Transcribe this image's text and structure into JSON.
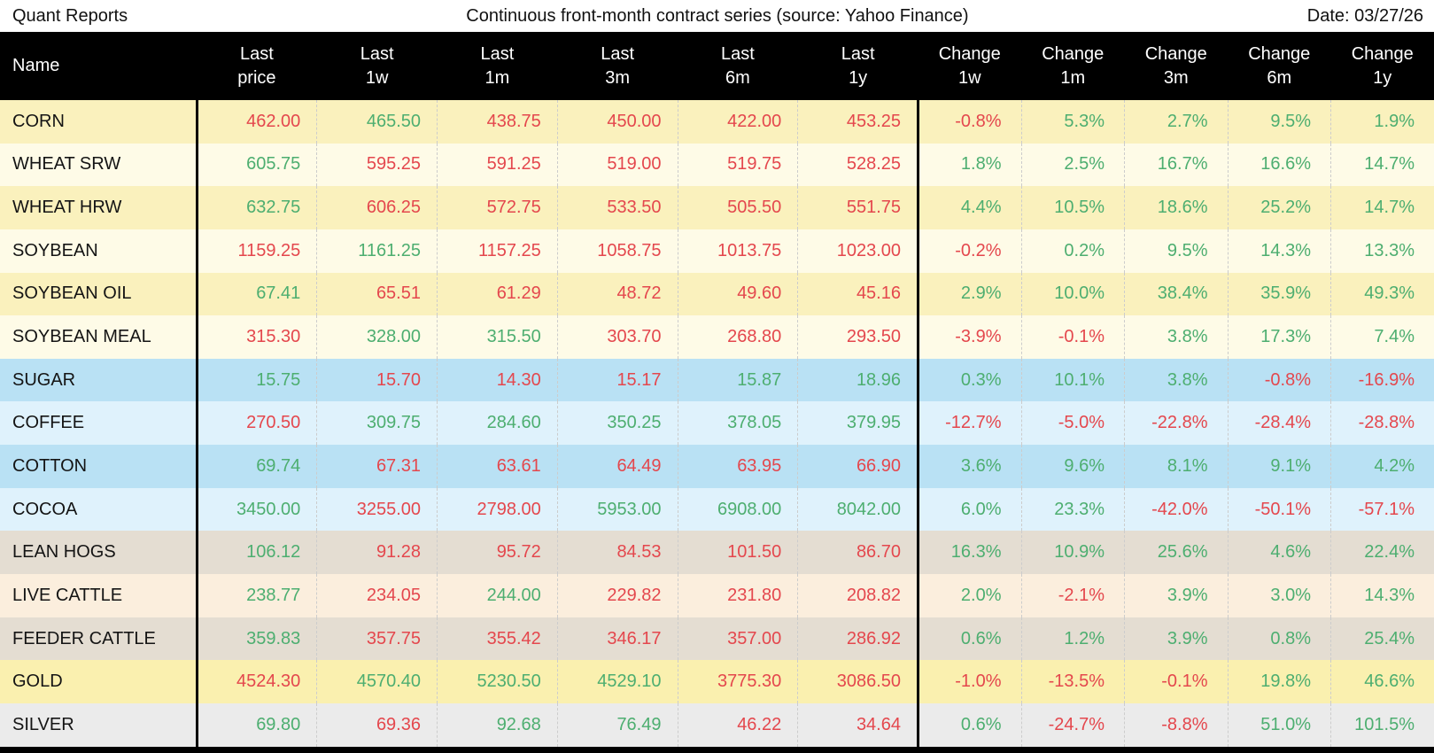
{
  "topbar": {
    "report_name": "Quant Reports",
    "title": "Continuous front-month contract series (source: Yahoo Finance)",
    "date": "Date: 03/27/26"
  },
  "colors": {
    "up": "#4DAE70",
    "down": "#E4474D",
    "header_bg": "#000000",
    "header_text": "#FFFFFF",
    "dashed_line": "#CCCCCC",
    "grain_dark": "#FAF1BD",
    "grain_light": "#FEFBE7",
    "soft_dark": "#B9E1F4",
    "soft_light": "#DFF2FC",
    "meat_dark": "#E4DDD2",
    "meat_light": "#FBEEDD",
    "gold": "#FAF0AF",
    "silver": "#EBEBEB"
  },
  "chart_data": {
    "type": "table",
    "title": "Continuous front-month contract series (source: Yahoo Finance)",
    "date": "03/27/26",
    "columns": [
      {
        "line1": "Name",
        "line2": ""
      },
      {
        "line1": "Last",
        "line2": "price"
      },
      {
        "line1": "Last",
        "line2": "1w"
      },
      {
        "line1": "Last",
        "line2": "1m"
      },
      {
        "line1": "Last",
        "line2": "3m"
      },
      {
        "line1": "Last",
        "line2": "6m"
      },
      {
        "line1": "Last",
        "line2": "1y"
      },
      {
        "line1": "Change",
        "line2": "1w"
      },
      {
        "line1": "Change",
        "line2": "1m"
      },
      {
        "line1": "Change",
        "line2": "3m"
      },
      {
        "line1": "Change",
        "line2": "6m"
      },
      {
        "line1": "Change",
        "line2": "1y"
      }
    ],
    "rows": [
      {
        "name": "CORN",
        "bg": "grain_dark",
        "cells": [
          {
            "v": "462.00",
            "t": "down"
          },
          {
            "v": "465.50",
            "t": "up"
          },
          {
            "v": "438.75",
            "t": "down"
          },
          {
            "v": "450.00",
            "t": "down"
          },
          {
            "v": "422.00",
            "t": "down"
          },
          {
            "v": "453.25",
            "t": "down"
          },
          {
            "v": "-0.8%",
            "t": "down"
          },
          {
            "v": "5.3%",
            "t": "up"
          },
          {
            "v": "2.7%",
            "t": "up"
          },
          {
            "v": "9.5%",
            "t": "up"
          },
          {
            "v": "1.9%",
            "t": "up"
          }
        ]
      },
      {
        "name": "WHEAT SRW",
        "bg": "grain_light",
        "cells": [
          {
            "v": "605.75",
            "t": "up"
          },
          {
            "v": "595.25",
            "t": "down"
          },
          {
            "v": "591.25",
            "t": "down"
          },
          {
            "v": "519.00",
            "t": "down"
          },
          {
            "v": "519.75",
            "t": "down"
          },
          {
            "v": "528.25",
            "t": "down"
          },
          {
            "v": "1.8%",
            "t": "up"
          },
          {
            "v": "2.5%",
            "t": "up"
          },
          {
            "v": "16.7%",
            "t": "up"
          },
          {
            "v": "16.6%",
            "t": "up"
          },
          {
            "v": "14.7%",
            "t": "up"
          }
        ]
      },
      {
        "name": "WHEAT HRW",
        "bg": "grain_dark",
        "cells": [
          {
            "v": "632.75",
            "t": "up"
          },
          {
            "v": "606.25",
            "t": "down"
          },
          {
            "v": "572.75",
            "t": "down"
          },
          {
            "v": "533.50",
            "t": "down"
          },
          {
            "v": "505.50",
            "t": "down"
          },
          {
            "v": "551.75",
            "t": "down"
          },
          {
            "v": "4.4%",
            "t": "up"
          },
          {
            "v": "10.5%",
            "t": "up"
          },
          {
            "v": "18.6%",
            "t": "up"
          },
          {
            "v": "25.2%",
            "t": "up"
          },
          {
            "v": "14.7%",
            "t": "up"
          }
        ]
      },
      {
        "name": "SOYBEAN",
        "bg": "grain_light",
        "cells": [
          {
            "v": "1159.25",
            "t": "down"
          },
          {
            "v": "1161.25",
            "t": "up"
          },
          {
            "v": "1157.25",
            "t": "down"
          },
          {
            "v": "1058.75",
            "t": "down"
          },
          {
            "v": "1013.75",
            "t": "down"
          },
          {
            "v": "1023.00",
            "t": "down"
          },
          {
            "v": "-0.2%",
            "t": "down"
          },
          {
            "v": "0.2%",
            "t": "up"
          },
          {
            "v": "9.5%",
            "t": "up"
          },
          {
            "v": "14.3%",
            "t": "up"
          },
          {
            "v": "13.3%",
            "t": "up"
          }
        ]
      },
      {
        "name": "SOYBEAN OIL",
        "bg": "grain_dark",
        "cells": [
          {
            "v": "67.41",
            "t": "up"
          },
          {
            "v": "65.51",
            "t": "down"
          },
          {
            "v": "61.29",
            "t": "down"
          },
          {
            "v": "48.72",
            "t": "down"
          },
          {
            "v": "49.60",
            "t": "down"
          },
          {
            "v": "45.16",
            "t": "down"
          },
          {
            "v": "2.9%",
            "t": "up"
          },
          {
            "v": "10.0%",
            "t": "up"
          },
          {
            "v": "38.4%",
            "t": "up"
          },
          {
            "v": "35.9%",
            "t": "up"
          },
          {
            "v": "49.3%",
            "t": "up"
          }
        ]
      },
      {
        "name": "SOYBEAN MEAL",
        "bg": "grain_light",
        "cells": [
          {
            "v": "315.30",
            "t": "down"
          },
          {
            "v": "328.00",
            "t": "up"
          },
          {
            "v": "315.50",
            "t": "up"
          },
          {
            "v": "303.70",
            "t": "down"
          },
          {
            "v": "268.80",
            "t": "down"
          },
          {
            "v": "293.50",
            "t": "down"
          },
          {
            "v": "-3.9%",
            "t": "down"
          },
          {
            "v": "-0.1%",
            "t": "down"
          },
          {
            "v": "3.8%",
            "t": "up"
          },
          {
            "v": "17.3%",
            "t": "up"
          },
          {
            "v": "7.4%",
            "t": "up"
          }
        ]
      },
      {
        "name": "SUGAR",
        "bg": "soft_dark",
        "cells": [
          {
            "v": "15.75",
            "t": "up"
          },
          {
            "v": "15.70",
            "t": "down"
          },
          {
            "v": "14.30",
            "t": "down"
          },
          {
            "v": "15.17",
            "t": "down"
          },
          {
            "v": "15.87",
            "t": "up"
          },
          {
            "v": "18.96",
            "t": "up"
          },
          {
            "v": "0.3%",
            "t": "up"
          },
          {
            "v": "10.1%",
            "t": "up"
          },
          {
            "v": "3.8%",
            "t": "up"
          },
          {
            "v": "-0.8%",
            "t": "down"
          },
          {
            "v": "-16.9%",
            "t": "down"
          }
        ]
      },
      {
        "name": "COFFEE",
        "bg": "soft_light",
        "cells": [
          {
            "v": "270.50",
            "t": "down"
          },
          {
            "v": "309.75",
            "t": "up"
          },
          {
            "v": "284.60",
            "t": "up"
          },
          {
            "v": "350.25",
            "t": "up"
          },
          {
            "v": "378.05",
            "t": "up"
          },
          {
            "v": "379.95",
            "t": "up"
          },
          {
            "v": "-12.7%",
            "t": "down"
          },
          {
            "v": "-5.0%",
            "t": "down"
          },
          {
            "v": "-22.8%",
            "t": "down"
          },
          {
            "v": "-28.4%",
            "t": "down"
          },
          {
            "v": "-28.8%",
            "t": "down"
          }
        ]
      },
      {
        "name": "COTTON",
        "bg": "soft_dark",
        "cells": [
          {
            "v": "69.74",
            "t": "up"
          },
          {
            "v": "67.31",
            "t": "down"
          },
          {
            "v": "63.61",
            "t": "down"
          },
          {
            "v": "64.49",
            "t": "down"
          },
          {
            "v": "63.95",
            "t": "down"
          },
          {
            "v": "66.90",
            "t": "down"
          },
          {
            "v": "3.6%",
            "t": "up"
          },
          {
            "v": "9.6%",
            "t": "up"
          },
          {
            "v": "8.1%",
            "t": "up"
          },
          {
            "v": "9.1%",
            "t": "up"
          },
          {
            "v": "4.2%",
            "t": "up"
          }
        ]
      },
      {
        "name": "COCOA",
        "bg": "soft_light",
        "cells": [
          {
            "v": "3450.00",
            "t": "up"
          },
          {
            "v": "3255.00",
            "t": "down"
          },
          {
            "v": "2798.00",
            "t": "down"
          },
          {
            "v": "5953.00",
            "t": "up"
          },
          {
            "v": "6908.00",
            "t": "up"
          },
          {
            "v": "8042.00",
            "t": "up"
          },
          {
            "v": "6.0%",
            "t": "up"
          },
          {
            "v": "23.3%",
            "t": "up"
          },
          {
            "v": "-42.0%",
            "t": "down"
          },
          {
            "v": "-50.1%",
            "t": "down"
          },
          {
            "v": "-57.1%",
            "t": "down"
          }
        ]
      },
      {
        "name": "LEAN HOGS",
        "bg": "meat_dark",
        "cells": [
          {
            "v": "106.12",
            "t": "up"
          },
          {
            "v": "91.28",
            "t": "down"
          },
          {
            "v": "95.72",
            "t": "down"
          },
          {
            "v": "84.53",
            "t": "down"
          },
          {
            "v": "101.50",
            "t": "down"
          },
          {
            "v": "86.70",
            "t": "down"
          },
          {
            "v": "16.3%",
            "t": "up"
          },
          {
            "v": "10.9%",
            "t": "up"
          },
          {
            "v": "25.6%",
            "t": "up"
          },
          {
            "v": "4.6%",
            "t": "up"
          },
          {
            "v": "22.4%",
            "t": "up"
          }
        ]
      },
      {
        "name": "LIVE CATTLE",
        "bg": "meat_light",
        "cells": [
          {
            "v": "238.77",
            "t": "up"
          },
          {
            "v": "234.05",
            "t": "down"
          },
          {
            "v": "244.00",
            "t": "up"
          },
          {
            "v": "229.82",
            "t": "down"
          },
          {
            "v": "231.80",
            "t": "down"
          },
          {
            "v": "208.82",
            "t": "down"
          },
          {
            "v": "2.0%",
            "t": "up"
          },
          {
            "v": "-2.1%",
            "t": "down"
          },
          {
            "v": "3.9%",
            "t": "up"
          },
          {
            "v": "3.0%",
            "t": "up"
          },
          {
            "v": "14.3%",
            "t": "up"
          }
        ]
      },
      {
        "name": "FEEDER CATTLE",
        "bg": "meat_dark",
        "cells": [
          {
            "v": "359.83",
            "t": "up"
          },
          {
            "v": "357.75",
            "t": "down"
          },
          {
            "v": "355.42",
            "t": "down"
          },
          {
            "v": "346.17",
            "t": "down"
          },
          {
            "v": "357.00",
            "t": "down"
          },
          {
            "v": "286.92",
            "t": "down"
          },
          {
            "v": "0.6%",
            "t": "up"
          },
          {
            "v": "1.2%",
            "t": "up"
          },
          {
            "v": "3.9%",
            "t": "up"
          },
          {
            "v": "0.8%",
            "t": "up"
          },
          {
            "v": "25.4%",
            "t": "up"
          }
        ]
      },
      {
        "name": "GOLD",
        "bg": "gold",
        "cells": [
          {
            "v": "4524.30",
            "t": "down"
          },
          {
            "v": "4570.40",
            "t": "up"
          },
          {
            "v": "5230.50",
            "t": "up"
          },
          {
            "v": "4529.10",
            "t": "up"
          },
          {
            "v": "3775.30",
            "t": "down"
          },
          {
            "v": "3086.50",
            "t": "down"
          },
          {
            "v": "-1.0%",
            "t": "down"
          },
          {
            "v": "-13.5%",
            "t": "down"
          },
          {
            "v": "-0.1%",
            "t": "down"
          },
          {
            "v": "19.8%",
            "t": "up"
          },
          {
            "v": "46.6%",
            "t": "up"
          }
        ]
      },
      {
        "name": "SILVER",
        "bg": "silver",
        "cells": [
          {
            "v": "69.80",
            "t": "up"
          },
          {
            "v": "69.36",
            "t": "down"
          },
          {
            "v": "92.68",
            "t": "up"
          },
          {
            "v": "76.49",
            "t": "up"
          },
          {
            "v": "46.22",
            "t": "down"
          },
          {
            "v": "34.64",
            "t": "down"
          },
          {
            "v": "0.6%",
            "t": "up"
          },
          {
            "v": "-24.7%",
            "t": "down"
          },
          {
            "v": "-8.8%",
            "t": "down"
          },
          {
            "v": "51.0%",
            "t": "up"
          },
          {
            "v": "101.5%",
            "t": "up"
          }
        ]
      }
    ]
  }
}
